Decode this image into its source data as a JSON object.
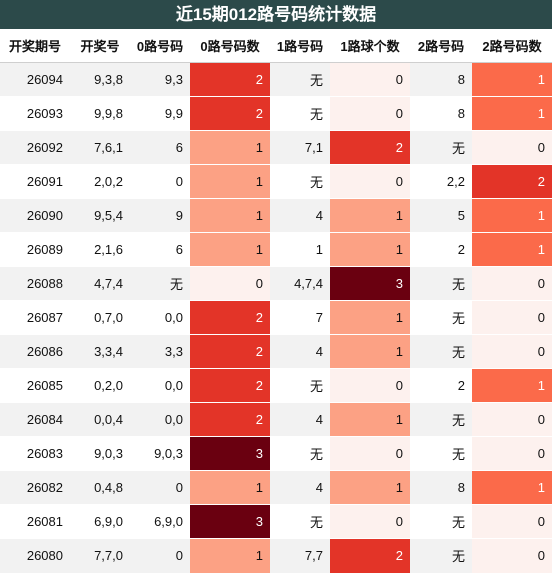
{
  "title": "近15期012路号码统计数据",
  "columns": [
    "开奖期号",
    "开奖号",
    "0路号码",
    "0路号码数",
    "1路号码",
    "1路球个数",
    "2路号码",
    "2路号码数"
  ],
  "rows": [
    [
      "26094",
      "9,3,8",
      "9,3",
      "2",
      "无",
      "0",
      "8",
      "1"
    ],
    [
      "26093",
      "9,9,8",
      "9,9",
      "2",
      "无",
      "0",
      "8",
      "1"
    ],
    [
      "26092",
      "7,6,1",
      "6",
      "1",
      "7,1",
      "2",
      "无",
      "0"
    ],
    [
      "26091",
      "2,0,2",
      "0",
      "1",
      "无",
      "0",
      "2,2",
      "2"
    ],
    [
      "26090",
      "9,5,4",
      "9",
      "1",
      "4",
      "1",
      "5",
      "1"
    ],
    [
      "26089",
      "2,1,6",
      "6",
      "1",
      "1",
      "1",
      "2",
      "1"
    ],
    [
      "26088",
      "4,7,4",
      "无",
      "0",
      "4,7,4",
      "3",
      "无",
      "0"
    ],
    [
      "26087",
      "0,7,0",
      "0,0",
      "2",
      "7",
      "1",
      "无",
      "0"
    ],
    [
      "26086",
      "3,3,4",
      "3,3",
      "2",
      "4",
      "1",
      "无",
      "0"
    ],
    [
      "26085",
      "0,2,0",
      "0,0",
      "2",
      "无",
      "0",
      "2",
      "1"
    ],
    [
      "26084",
      "0,0,4",
      "0,0",
      "2",
      "4",
      "1",
      "无",
      "0"
    ],
    [
      "26083",
      "9,0,3",
      "9,0,3",
      "3",
      "无",
      "0",
      "无",
      "0"
    ],
    [
      "26082",
      "0,4,8",
      "0",
      "1",
      "4",
      "1",
      "8",
      "1"
    ],
    [
      "26081",
      "6,9,0",
      "6,9,0",
      "3",
      "无",
      "0",
      "无",
      "0"
    ],
    [
      "26080",
      "7,7,0",
      "0",
      "1",
      "7,7",
      "2",
      "无",
      "0"
    ]
  ],
  "colors": {
    "header_bg": "#2c4a4a",
    "count_0": "#fdf1ee",
    "count_1": "#fca184",
    "count_2": "#e33428",
    "count_3": "#6a0010",
    "count_1_alt": "#fb6a4a"
  }
}
